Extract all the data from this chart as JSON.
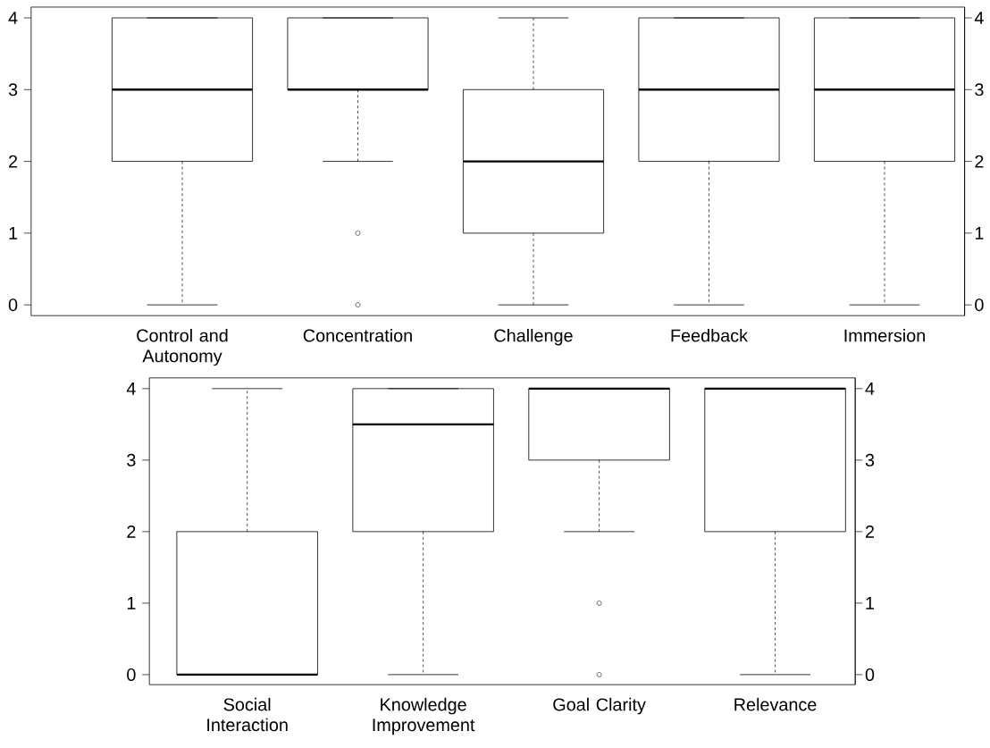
{
  "chart_data": [
    {
      "type": "box",
      "categories": [
        "Control and Autonomy",
        "Concentration",
        "Challenge",
        "Feedback",
        "Immersion"
      ],
      "boxes": [
        {
          "low": 0,
          "q1": 2,
          "median": 3,
          "q3": 4,
          "high": 4
        },
        {
          "low": 2,
          "q1": 3,
          "median": 3,
          "q3": 4,
          "high": 4,
          "outliers": [
            1,
            0
          ]
        },
        {
          "low": 0,
          "q1": 1,
          "median": 2,
          "q3": 3,
          "high": 4
        },
        {
          "low": 0,
          "q1": 2,
          "median": 3,
          "q3": 4,
          "high": 4
        },
        {
          "low": 0,
          "q1": 2,
          "median": 3,
          "q3": 4,
          "high": 4
        }
      ],
      "ylim": [
        -0.15,
        4.15
      ],
      "yticks": [
        0,
        1,
        2,
        3,
        4
      ],
      "y2lim": [
        -0.15,
        4.15
      ],
      "y2ticks": [
        0,
        1,
        2,
        3,
        4
      ],
      "grid": false
    },
    {
      "type": "box",
      "categories": [
        "Social Interaction",
        "Knowledge Improvement",
        "Goal Clarity",
        "Relevance"
      ],
      "boxes": [
        {
          "low": 0,
          "q1": 0,
          "median": 0,
          "q3": 2,
          "high": 4
        },
        {
          "low": 0,
          "q1": 2,
          "median": 3.5,
          "q3": 4,
          "high": 4
        },
        {
          "low": 2,
          "q1": 3,
          "median": 4,
          "q3": 4,
          "high": 4,
          "outliers": [
            1,
            0
          ]
        },
        {
          "low": 0,
          "q1": 2,
          "median": 4,
          "q3": 4,
          "high": 4
        }
      ],
      "ylim": [
        -0.14,
        4.15
      ],
      "yticks": [
        0,
        1,
        2,
        3,
        4
      ],
      "y2lim": [
        -0.14,
        4.15
      ],
      "y2ticks": [
        0,
        1,
        2,
        3,
        4
      ],
      "grid": false
    }
  ]
}
